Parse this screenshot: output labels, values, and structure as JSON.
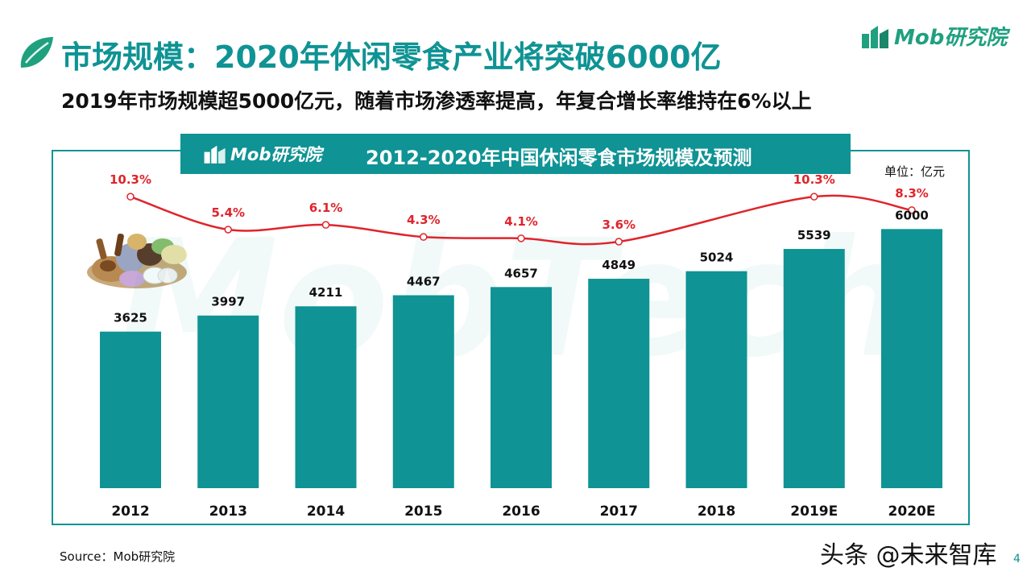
{
  "page": {
    "title": "市场规模：2020年休闲零食产业将突破6000亿",
    "subtitle": "2019年市场规模超5000亿元，随着市场渗透率提高，年复合增长率维持在6%以上",
    "brand": "Mob研究院",
    "source": "Source：Mob研究院",
    "credit": "头条 @未来智库",
    "page_number": "4"
  },
  "colors": {
    "teal": "#0f9394",
    "brand_green": "#1fa07f",
    "line_red": "#e0242b"
  },
  "icons": [
    "leaf-icon",
    "mob-logo-icon",
    "snack-food-image",
    "mobtech-watermark"
  ],
  "chart_data": {
    "type": "bar",
    "title": "2012-2020年中国休闲零食市场规模及预测",
    "unit": "单位：亿元",
    "categories": [
      "2012",
      "2013",
      "2014",
      "2015",
      "2016",
      "2017",
      "2018",
      "2019E",
      "2020E"
    ],
    "values": [
      3625,
      3997,
      4211,
      4467,
      4657,
      4849,
      5024,
      5539,
      6000
    ],
    "value_labels": [
      "3625",
      "3997",
      "4211",
      "4467",
      "4657",
      "4849",
      "5024",
      "5539",
      "6000"
    ],
    "ylim": [
      0,
      7200
    ],
    "line": {
      "values": [
        10.3,
        5.4,
        6.1,
        4.3,
        4.1,
        3.6,
        10.3,
        8.3
      ],
      "labels": [
        "10.3%",
        "5.4%",
        "6.1%",
        "4.3%",
        "4.1%",
        "3.6%",
        "10.3%",
        "8.3%"
      ],
      "categories": [
        "2012",
        "2013",
        "2014",
        "2015",
        "2016",
        "2017",
        "2019E",
        "2020E"
      ]
    },
    "grid": false,
    "legend": "none"
  }
}
